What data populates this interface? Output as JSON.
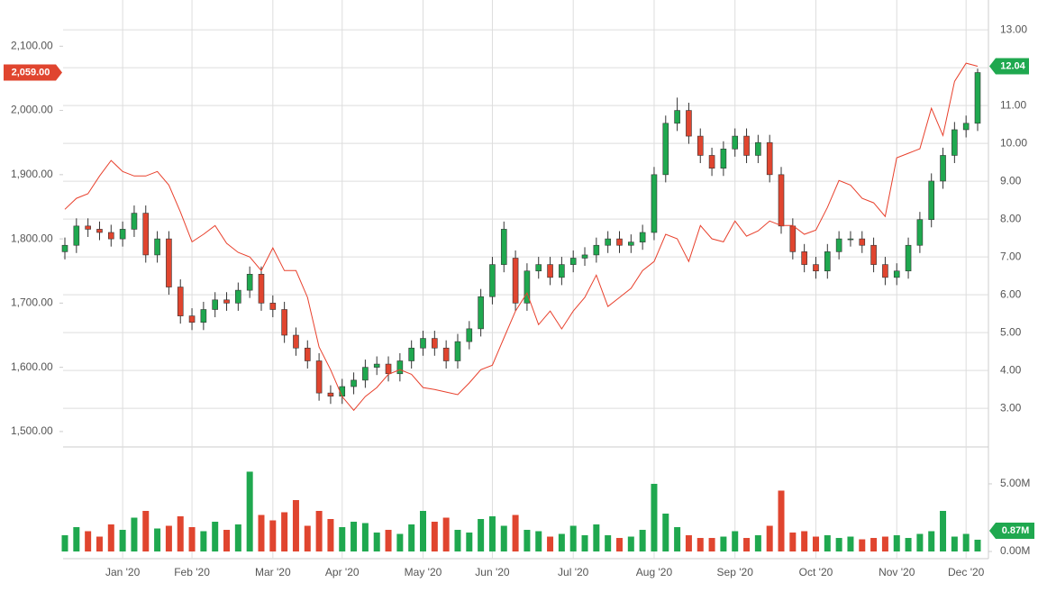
{
  "chart_data": [
    {
      "type": "candlestick",
      "categories": [
        null,
        null,
        null,
        null,
        null,
        "Jan '20",
        null,
        null,
        null,
        null,
        null,
        "Feb '20",
        null,
        null,
        null,
        null,
        null,
        null,
        "Mar '20",
        null,
        null,
        null,
        null,
        null,
        "Apr '20",
        null,
        null,
        null,
        null,
        null,
        null,
        "May '20",
        null,
        null,
        null,
        null,
        null,
        "Jun '20",
        null,
        null,
        null,
        null,
        null,
        null,
        "Jul '20",
        null,
        null,
        null,
        null,
        null,
        null,
        "Aug '20",
        null,
        null,
        null,
        null,
        null,
        null,
        "Sep '20",
        null,
        null,
        null,
        null,
        null,
        null,
        "Oct '20",
        null,
        null,
        null,
        null,
        null,
        null,
        "Nov '20",
        null,
        null,
        null,
        null,
        null,
        "Dec '20",
        null
      ],
      "open": [
        1780,
        1790,
        1820,
        1815,
        1810,
        1800,
        1815,
        1840,
        1775,
        1800,
        1725,
        1680,
        1670,
        1690,
        1705,
        1700,
        1720,
        1745,
        1700,
        1690,
        1650,
        1630,
        1610,
        1560,
        1555,
        1570,
        1580,
        1600,
        1605,
        1590,
        1610,
        1630,
        1645,
        1630,
        1610,
        1640,
        1660,
        1710,
        1760,
        1770,
        1700,
        1750,
        1760,
        1740,
        1760,
        1770,
        1775,
        1790,
        1800,
        1790,
        1795,
        1810,
        1900,
        1980,
        2000,
        1960,
        1930,
        1910,
        1940,
        1960,
        1930,
        1950,
        1900,
        1820,
        1780,
        1760,
        1750,
        1780,
        1800,
        1800,
        1790,
        1760,
        1740,
        1750,
        1790,
        1830,
        1890,
        1930,
        1970,
        1980
      ],
      "high": [
        1802,
        1832,
        1832,
        1827,
        1822,
        1827,
        1852,
        1852,
        1812,
        1812,
        1737,
        1692,
        1702,
        1717,
        1717,
        1732,
        1757,
        1757,
        1712,
        1702,
        1662,
        1642,
        1622,
        1572,
        1582,
        1592,
        1612,
        1617,
        1617,
        1622,
        1642,
        1657,
        1657,
        1642,
        1652,
        1672,
        1722,
        1772,
        1827,
        1782,
        1762,
        1772,
        1772,
        1772,
        1782,
        1787,
        1802,
        1812,
        1812,
        1807,
        1822,
        1912,
        1992,
        2020,
        2012,
        1972,
        1942,
        1952,
        1972,
        1972,
        1962,
        1962,
        1912,
        1832,
        1792,
        1772,
        1792,
        1812,
        1812,
        1812,
        1802,
        1772,
        1762,
        1802,
        1842,
        1902,
        1942,
        1982,
        1992,
        2065
      ],
      "low": [
        1768,
        1778,
        1803,
        1798,
        1788,
        1788,
        1803,
        1763,
        1763,
        1713,
        1668,
        1658,
        1658,
        1678,
        1688,
        1688,
        1708,
        1688,
        1678,
        1638,
        1618,
        1598,
        1548,
        1543,
        1543,
        1558,
        1568,
        1588,
        1578,
        1578,
        1598,
        1618,
        1618,
        1598,
        1598,
        1628,
        1648,
        1698,
        1748,
        1688,
        1688,
        1738,
        1728,
        1728,
        1748,
        1758,
        1763,
        1778,
        1778,
        1778,
        1783,
        1798,
        1888,
        1968,
        1948,
        1918,
        1898,
        1898,
        1928,
        1918,
        1918,
        1888,
        1808,
        1768,
        1748,
        1738,
        1738,
        1768,
        1788,
        1778,
        1748,
        1728,
        1728,
        1738,
        1778,
        1818,
        1878,
        1918,
        1958,
        1968
      ],
      "close": [
        1790,
        1820,
        1815,
        1810,
        1800,
        1815,
        1840,
        1775,
        1800,
        1725,
        1680,
        1670,
        1690,
        1705,
        1700,
        1720,
        1745,
        1700,
        1690,
        1650,
        1630,
        1610,
        1560,
        1555,
        1570,
        1580,
        1600,
        1605,
        1590,
        1610,
        1630,
        1645,
        1630,
        1610,
        1640,
        1660,
        1710,
        1760,
        1815,
        1700,
        1750,
        1760,
        1740,
        1760,
        1770,
        1775,
        1790,
        1800,
        1790,
        1795,
        1810,
        1900,
        1980,
        2000,
        1960,
        1930,
        1910,
        1940,
        1960,
        1930,
        1950,
        1900,
        1820,
        1780,
        1760,
        1750,
        1780,
        1800,
        1800,
        1790,
        1760,
        1740,
        1750,
        1790,
        1830,
        1890,
        1930,
        1970,
        1980,
        2059
      ],
      "close_label": "2,059.00",
      "up_color": "#1fa84f",
      "down_color": "#e0452f",
      "ylim": [
        1476,
        2172
      ],
      "yticks": [
        {
          "value": 1500,
          "label": "1,500.00"
        },
        {
          "value": 1600,
          "label": "1,600.00"
        },
        {
          "value": 1700,
          "label": "1,700.00"
        },
        {
          "value": 1800,
          "label": "1,800.00"
        },
        {
          "value": 1900,
          "label": "1,900.00"
        },
        {
          "value": 2000,
          "label": "2,000.00"
        },
        {
          "value": 2100,
          "label": "2,100.00"
        }
      ],
      "line": {
        "color": "#e8402c",
        "axis": "y2",
        "values": [
          8.26,
          8.55,
          8.67,
          9.14,
          9.55,
          9.26,
          9.14,
          9.14,
          9.26,
          8.9,
          8.19,
          7.4,
          7.6,
          7.83,
          7.36,
          7.12,
          7.0,
          6.64,
          7.24,
          6.64,
          6.64,
          5.93,
          4.62,
          4.02,
          3.31,
          2.95,
          3.31,
          3.55,
          3.9,
          4.02,
          3.9,
          3.55,
          3.5,
          3.43,
          3.36,
          3.67,
          4.02,
          4.14,
          4.86,
          5.57,
          6.05,
          5.21,
          5.57,
          5.1,
          5.57,
          5.93,
          6.52,
          5.69,
          5.93,
          6.17,
          6.64,
          6.88,
          7.6,
          7.48,
          6.88,
          7.83,
          7.48,
          7.4,
          7.95,
          7.55,
          7.69,
          7.95,
          7.83,
          7.83,
          7.6,
          7.71,
          8.31,
          9.02,
          8.9,
          8.55,
          8.43,
          8.07,
          9.62,
          9.74,
          9.86,
          10.93,
          10.21,
          11.64,
          12.12,
          12.04
        ],
        "value_label": "12.04",
        "tag_color": "#1fa84f"
      },
      "y2lim": [
        1.98,
        13.79
      ],
      "y2ticks": [
        {
          "value": 3,
          "label": "3.00"
        },
        {
          "value": 4,
          "label": "4.00"
        },
        {
          "value": 5,
          "label": "5.00"
        },
        {
          "value": 6,
          "label": "6.00"
        },
        {
          "value": 7,
          "label": "7.00"
        },
        {
          "value": 8,
          "label": "8.00"
        },
        {
          "value": 9,
          "label": "9.00"
        },
        {
          "value": 10,
          "label": "10.00"
        },
        {
          "value": 11,
          "label": "11.00"
        },
        {
          "value": 12,
          "label": "12.00"
        },
        {
          "value": 13,
          "label": "13.00"
        }
      ],
      "grid": true
    },
    {
      "type": "bar",
      "values": [
        1.2,
        1.8,
        1.5,
        1.1,
        2.0,
        1.6,
        2.5,
        3.0,
        1.7,
        1.9,
        2.6,
        1.8,
        1.5,
        2.2,
        1.6,
        2.0,
        5.9,
        2.7,
        2.3,
        2.9,
        3.8,
        1.9,
        3.0,
        2.4,
        1.8,
        2.2,
        2.1,
        1.4,
        1.6,
        1.3,
        2.0,
        3.0,
        2.2,
        2.5,
        1.6,
        1.4,
        2.4,
        2.6,
        1.9,
        2.7,
        1.6,
        1.5,
        1.1,
        1.3,
        1.9,
        1.2,
        2.0,
        1.2,
        1.0,
        1.1,
        1.6,
        5.0,
        2.8,
        1.8,
        1.2,
        1.0,
        1.0,
        1.1,
        1.5,
        1.0,
        1.2,
        1.9,
        4.5,
        1.4,
        1.5,
        1.1,
        1.2,
        1.0,
        1.1,
        0.9,
        1.0,
        1.1,
        1.2,
        1.0,
        1.3,
        1.5,
        3.0,
        1.1,
        1.3,
        0.87
      ],
      "value_label": "0.87M",
      "tag_color": "#1fa84f",
      "ylim": [
        -0.53,
        6.13
      ],
      "yticks": [
        {
          "value": 0,
          "label": "0.00M"
        },
        {
          "value": 5,
          "label": "5.00M"
        }
      ]
    }
  ]
}
